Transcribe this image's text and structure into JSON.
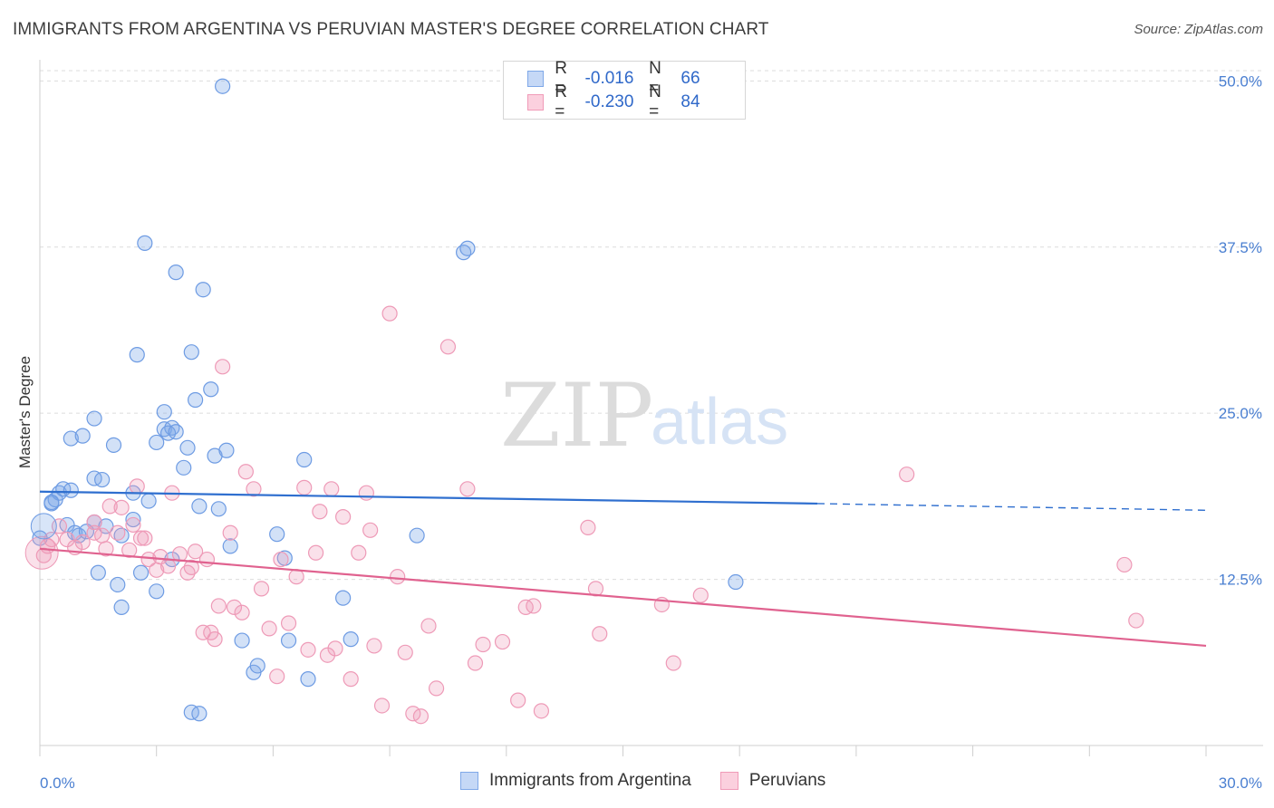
{
  "title": "IMMIGRANTS FROM ARGENTINA VS PERUVIAN MASTER'S DEGREE CORRELATION CHART",
  "source": "Source: ZipAtlas.com",
  "watermark": {
    "zip": "ZIP",
    "atlas": "atlas"
  },
  "legend": {
    "rows": [
      {
        "r_label": "R =",
        "r_value": "-0.016",
        "n_label": "N =",
        "n_value": "66"
      },
      {
        "r_label": "R =",
        "r_value": "-0.230",
        "n_label": "N =",
        "n_value": "84"
      }
    ]
  },
  "bottom_legend": [
    "Immigrants from Argentina",
    "Peruvians"
  ],
  "chart_data": {
    "type": "scatter",
    "title": "IMMIGRANTS FROM ARGENTINA VS PERUVIAN MASTER'S DEGREE CORRELATION CHART",
    "xlabel": "",
    "ylabel": "Master's Degree",
    "xlim": [
      0,
      30
    ],
    "ylim": [
      0,
      52
    ],
    "x_tick_labels": [
      "0.0%",
      "30.0%"
    ],
    "y_ticks": [
      12.5,
      25.0,
      37.5,
      50.0
    ],
    "y_tick_labels": [
      "12.5%",
      "25.0%",
      "37.5%",
      "50.0%"
    ],
    "grid": "horizontal dashed",
    "colors": {
      "argentina": "#7fa8e8",
      "argentina_line": "#2f6fcf",
      "peru": "#f09bb8",
      "peru_line": "#e0628f"
    },
    "series": [
      {
        "name": "Immigrants from Argentina",
        "points": [
          [
            0.3,
            18.2
          ],
          [
            0.4,
            18.5
          ],
          [
            0.5,
            19.0
          ],
          [
            0.6,
            19.3
          ],
          [
            0.8,
            19.2
          ],
          [
            0.7,
            16.6
          ],
          [
            0.9,
            16.0
          ],
          [
            1.0,
            15.8
          ],
          [
            1.2,
            16.1
          ],
          [
            1.4,
            20.1
          ],
          [
            1.4,
            16.8
          ],
          [
            1.7,
            16.5
          ],
          [
            1.6,
            20.0
          ],
          [
            2.4,
            19.0
          ],
          [
            2.4,
            17.0
          ],
          [
            2.8,
            18.4
          ],
          [
            2.5,
            29.4
          ],
          [
            2.7,
            37.8
          ],
          [
            3.0,
            22.8
          ],
          [
            3.2,
            23.8
          ],
          [
            3.4,
            23.9
          ],
          [
            3.2,
            25.1
          ],
          [
            3.3,
            23.5
          ],
          [
            3.5,
            35.6
          ],
          [
            3.5,
            23.6
          ],
          [
            3.7,
            20.9
          ],
          [
            3.8,
            22.4
          ],
          [
            3.9,
            29.6
          ],
          [
            4.0,
            26.0
          ],
          [
            4.2,
            34.3
          ],
          [
            4.4,
            26.8
          ],
          [
            4.5,
            21.8
          ],
          [
            4.8,
            22.2
          ],
          [
            1.4,
            24.6
          ],
          [
            0.8,
            23.1
          ],
          [
            1.1,
            23.3
          ],
          [
            1.9,
            22.6
          ],
          [
            2.0,
            12.1
          ],
          [
            2.1,
            10.4
          ],
          [
            1.5,
            13.0
          ],
          [
            2.6,
            13.0
          ],
          [
            3.0,
            11.6
          ],
          [
            3.4,
            14.0
          ],
          [
            3.9,
            2.5
          ],
          [
            4.1,
            2.4
          ],
          [
            4.6,
            17.8
          ],
          [
            5.2,
            7.9
          ],
          [
            5.5,
            5.5
          ],
          [
            5.6,
            6.0
          ],
          [
            6.1,
            15.9
          ],
          [
            6.3,
            14.1
          ],
          [
            6.4,
            7.9
          ],
          [
            6.8,
            21.5
          ],
          [
            6.9,
            5.0
          ],
          [
            7.8,
            11.1
          ],
          [
            8.0,
            8.0
          ],
          [
            9.7,
            15.8
          ],
          [
            10.9,
            37.1
          ],
          [
            11.0,
            37.4
          ],
          [
            17.9,
            12.3
          ],
          [
            4.7,
            49.6
          ],
          [
            4.9,
            15.0
          ],
          [
            4.1,
            18.0
          ],
          [
            0.3,
            18.3
          ],
          [
            0.0,
            15.6
          ],
          [
            2.1,
            15.8
          ]
        ]
      },
      {
        "name": "Peruvians",
        "points": [
          [
            0.1,
            14.3
          ],
          [
            0.2,
            15.0
          ],
          [
            0.3,
            15.5
          ],
          [
            0.5,
            16.5
          ],
          [
            0.7,
            15.5
          ],
          [
            0.9,
            14.9
          ],
          [
            1.1,
            15.3
          ],
          [
            1.4,
            16.0
          ],
          [
            1.6,
            15.8
          ],
          [
            1.7,
            14.8
          ],
          [
            1.8,
            18.0
          ],
          [
            2.0,
            16.0
          ],
          [
            2.1,
            17.9
          ],
          [
            2.3,
            14.7
          ],
          [
            2.4,
            16.6
          ],
          [
            2.5,
            19.5
          ],
          [
            2.6,
            15.6
          ],
          [
            2.7,
            15.6
          ],
          [
            2.8,
            14.0
          ],
          [
            3.0,
            13.2
          ],
          [
            3.1,
            14.2
          ],
          [
            3.3,
            13.5
          ],
          [
            3.4,
            19.0
          ],
          [
            3.6,
            14.4
          ],
          [
            3.8,
            13.0
          ],
          [
            3.9,
            13.4
          ],
          [
            4.0,
            14.6
          ],
          [
            4.2,
            8.5
          ],
          [
            4.3,
            14.0
          ],
          [
            4.4,
            8.5
          ],
          [
            4.5,
            8.0
          ],
          [
            4.6,
            10.5
          ],
          [
            4.7,
            28.5
          ],
          [
            4.9,
            16.0
          ],
          [
            5.0,
            10.4
          ],
          [
            5.2,
            10.0
          ],
          [
            5.3,
            20.6
          ],
          [
            5.5,
            19.3
          ],
          [
            5.7,
            11.8
          ],
          [
            5.9,
            8.8
          ],
          [
            6.1,
            5.2
          ],
          [
            6.2,
            14.0
          ],
          [
            6.4,
            9.2
          ],
          [
            6.6,
            12.7
          ],
          [
            6.8,
            19.4
          ],
          [
            6.9,
            7.2
          ],
          [
            7.1,
            14.5
          ],
          [
            7.2,
            17.6
          ],
          [
            7.4,
            6.8
          ],
          [
            7.5,
            19.3
          ],
          [
            7.6,
            7.3
          ],
          [
            7.8,
            17.2
          ],
          [
            8.0,
            5.0
          ],
          [
            8.2,
            14.5
          ],
          [
            8.4,
            19.0
          ],
          [
            8.5,
            16.2
          ],
          [
            8.6,
            7.5
          ],
          [
            8.8,
            3.0
          ],
          [
            9.0,
            32.5
          ],
          [
            9.2,
            12.7
          ],
          [
            9.4,
            7.0
          ],
          [
            9.6,
            2.4
          ],
          [
            9.8,
            2.2
          ],
          [
            10.0,
            9.0
          ],
          [
            10.2,
            4.3
          ],
          [
            10.5,
            30.0
          ],
          [
            11.0,
            19.3
          ],
          [
            11.2,
            6.2
          ],
          [
            11.4,
            7.6
          ],
          [
            11.9,
            7.8
          ],
          [
            12.3,
            3.4
          ],
          [
            12.5,
            10.4
          ],
          [
            12.7,
            10.5
          ],
          [
            12.9,
            2.6
          ],
          [
            14.1,
            16.4
          ],
          [
            14.4,
            8.4
          ],
          [
            14.3,
            11.8
          ],
          [
            16.0,
            10.6
          ],
          [
            16.3,
            6.2
          ],
          [
            17.0,
            11.3
          ],
          [
            22.3,
            20.4
          ],
          [
            27.9,
            13.6
          ],
          [
            28.2,
            9.4
          ],
          [
            1.4,
            16.8
          ]
        ]
      }
    ],
    "trend_lines": [
      {
        "name": "Immigrants from Argentina",
        "x0": 0,
        "y0": 19.1,
        "x1": 20.0,
        "y1": 18.2,
        "dashed_to_x": 30,
        "dashed_to_y": 17.7
      },
      {
        "name": "Peruvians",
        "x0": 0,
        "y0": 14.8,
        "x1": 30,
        "y1": 7.5
      }
    ]
  }
}
